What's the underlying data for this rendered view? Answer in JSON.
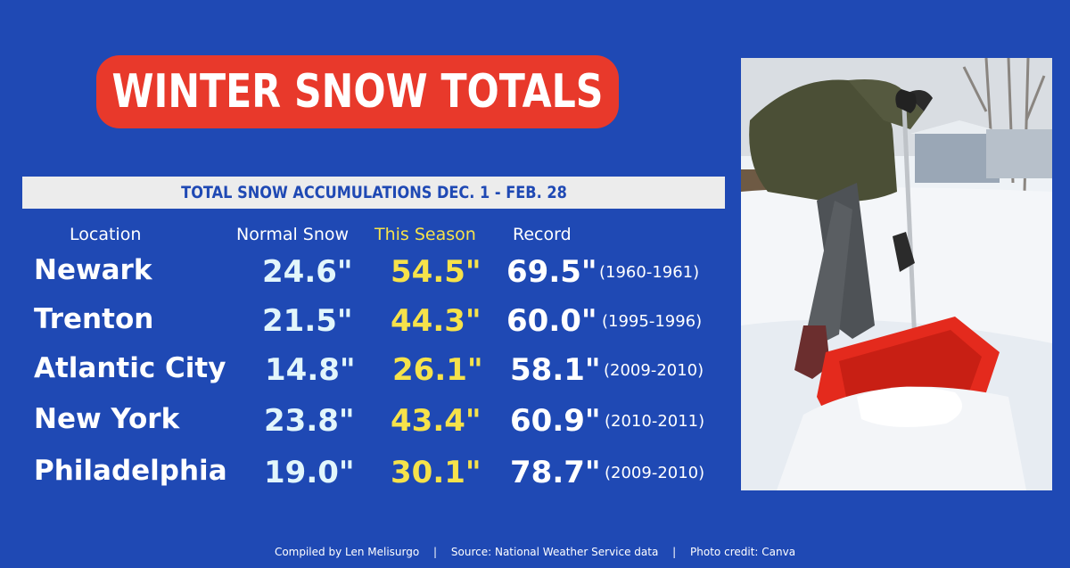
{
  "title": "WINTER SNOW TOTALS",
  "subtitle": "TOTAL SNOW ACCUMULATIONS DEC. 1 - FEB. 28",
  "headers": {
    "location": "Location",
    "normal": "Normal Snow",
    "season": "This Season",
    "record": "Record"
  },
  "rows": [
    {
      "location": "Newark",
      "normal": "24.6\"",
      "season": "54.5\"",
      "record": "69.5\"",
      "years": "(1960-1961)"
    },
    {
      "location": "Trenton",
      "normal": "21.5\"",
      "season": "44.3\"",
      "record": "60.0\"",
      "years": "(1995-1996)"
    },
    {
      "location": "Atlantic City",
      "normal": "14.8\"",
      "season": "26.1\"",
      "record": "58.1\"",
      "years": "(2009-2010)"
    },
    {
      "location": "New York",
      "normal": "23.8\"",
      "season": "43.4\"",
      "record": "60.9\"",
      "years": "(2010-2011)"
    },
    {
      "location": "Philadelphia",
      "normal": "19.0\"",
      "season": "30.1\"",
      "record": "78.7\"",
      "years": "(2009-2010)"
    }
  ],
  "footer": {
    "compiled": "Compiled by Len Melisurgo",
    "source": "Source: National Weather Service data",
    "credit": "Photo credit: Canva",
    "separator": "|"
  },
  "colors": {
    "background": "#1f49b4",
    "title_pill": "#e8392b",
    "season_yellow": "#f6e24a",
    "normal_cyan": "#e2f6fb",
    "shovel_red": "#e42a1d"
  },
  "photo": {
    "subject": "person shoveling snow with red shovel"
  }
}
